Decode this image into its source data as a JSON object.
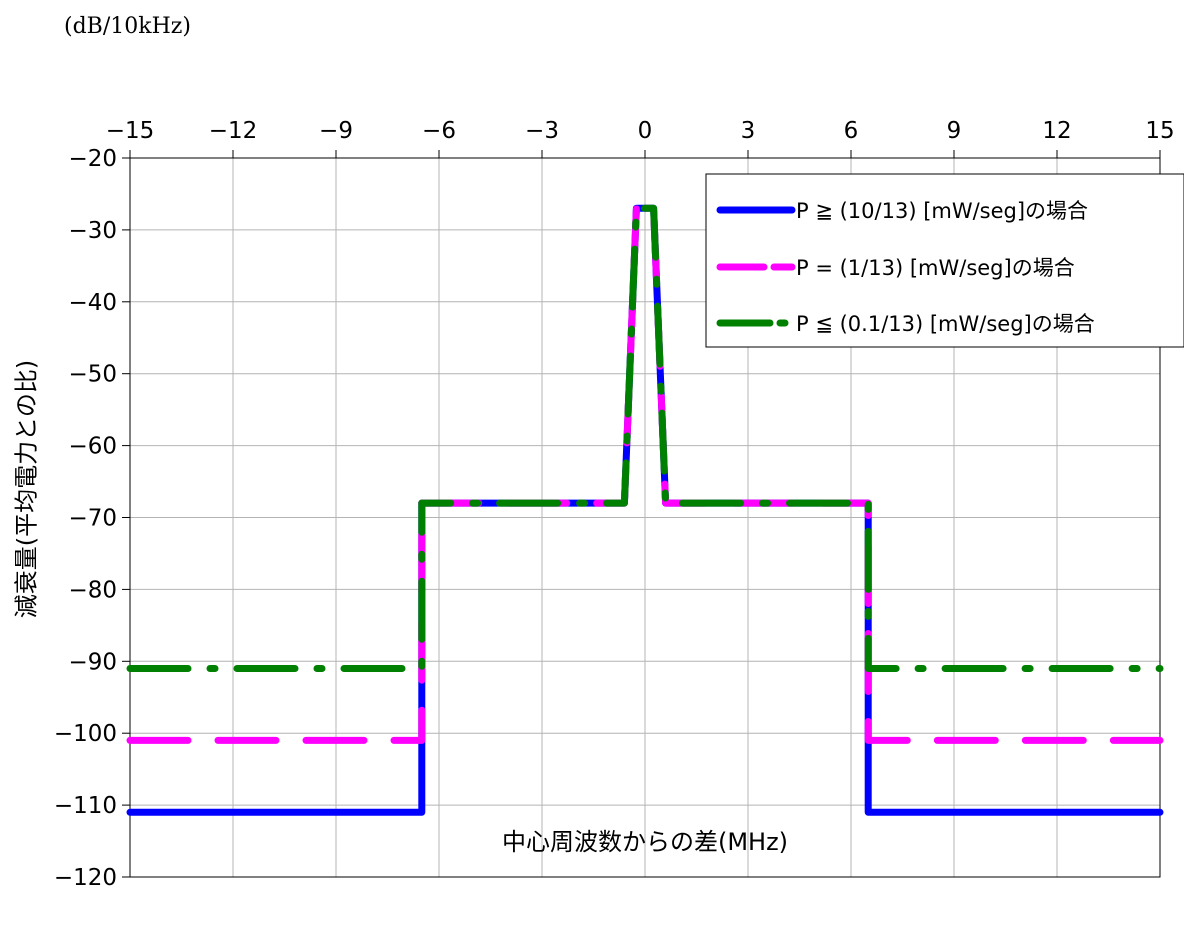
{
  "chart_data": {
    "type": "line",
    "title": "",
    "unit_label": "(dB/10kHz)",
    "xlabel": "中心周波数からの差(MHz)",
    "ylabel": "減衰量(平均電力との比)",
    "xlim": [
      -15,
      15
    ],
    "ylim": [
      -120,
      -20
    ],
    "x_ticks": [
      -15,
      -12,
      -9,
      -6,
      -3,
      0,
      3,
      6,
      9,
      12,
      15
    ],
    "x_tick_labels": [
      "−15",
      "−12",
      "−9",
      "−6",
      "−3",
      "0",
      "3",
      "6",
      "9",
      "12",
      "15"
    ],
    "y_ticks": [
      -20,
      -30,
      -40,
      -50,
      -60,
      -70,
      -80,
      -90,
      -100,
      -110,
      -120
    ],
    "y_tick_labels": [
      "−20",
      "−30",
      "−40",
      "−50",
      "−60",
      "−70",
      "−80",
      "−90",
      "−100",
      "−110",
      "−120"
    ],
    "x_axis_position": "top",
    "grid": true,
    "legend_position": "top-right",
    "series": [
      {
        "name": "P ≧ (10/13) [mW/seg]の場合",
        "color": "#0000ff",
        "dash": "solid",
        "x": [
          -15,
          -6.5,
          -6.5,
          -0.6,
          -0.25,
          0.25,
          0.6,
          6.5,
          6.5,
          15
        ],
        "y": [
          -111,
          -111,
          -68,
          -68,
          -27,
          -27,
          -68,
          -68,
          -111,
          -111
        ]
      },
      {
        "name": "P = (1/13) [mW/seg]の場合",
        "color": "#ff00ff",
        "dash": "dashed",
        "x": [
          -15,
          -6.5,
          -6.5,
          -0.6,
          -0.25,
          0.25,
          0.6,
          6.5,
          6.5,
          15
        ],
        "y": [
          -101,
          -101,
          -68,
          -68,
          -27,
          -27,
          -68,
          -68,
          -101,
          -101
        ]
      },
      {
        "name": "P ≦ (0.1/13) [mW/seg]の場合",
        "color": "#008000",
        "dash": "dash-dot",
        "x": [
          -15,
          -6.5,
          -6.5,
          -0.6,
          -0.25,
          0.25,
          0.6,
          6.5,
          6.5,
          15
        ],
        "y": [
          -91,
          -91,
          -68,
          -68,
          -27,
          -27,
          -68,
          -68,
          -91,
          -91
        ]
      }
    ]
  }
}
